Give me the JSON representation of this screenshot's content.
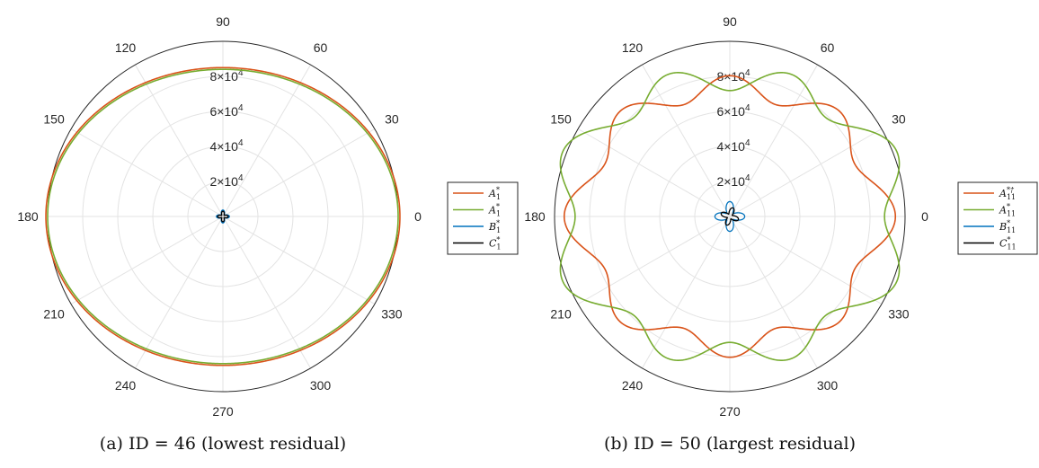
{
  "chart_data": [
    {
      "type": "polar",
      "caption": "(a) ID = 46 (lowest residual)",
      "angle_ticks": [
        "0",
        "30",
        "60",
        "90",
        "120",
        "150",
        "180",
        "210",
        "240",
        "270",
        "300",
        "330"
      ],
      "radial_ticks": [
        {
          "base": "2",
          "exp": "4",
          "value": 20000
        },
        {
          "base": "4",
          "exp": "4",
          "value": 40000
        },
        {
          "base": "6",
          "exp": "4",
          "value": 60000
        },
        {
          "base": "8",
          "exp": "4",
          "value": 80000
        }
      ],
      "rlim": [
        0,
        100000
      ],
      "grid": true,
      "legend_position": "right, clipped",
      "series": [
        {
          "name": "A_{11}^{*†}",
          "label_main": "A",
          "label_sub": "1",
          "label_sup": "*",
          "color": "#d95319",
          "form": "quartic",
          "a": 101000,
          "b": 85000,
          "k": 0,
          "m": 0,
          "phase": 0
        },
        {
          "name": "A_{11}^{*}",
          "label_main": "A",
          "label_sub": "1",
          "label_sup": "*",
          "color": "#77ac30",
          "form": "quartic",
          "a": 100000,
          "b": 84000,
          "k": 0,
          "m": 0,
          "phase": 0
        },
        {
          "name": "B_{11}^{*}",
          "label_main": "B",
          "label_sub": "1",
          "label_sup": "*",
          "color": "#0072bd",
          "form": "rose",
          "a": 1100,
          "b": 2600,
          "k": 0,
          "m": 2,
          "phase": 0
        },
        {
          "name": "C_{11}^{*}",
          "label_main": "C",
          "label_sub": "1",
          "label_sup": "*",
          "color": "#000000",
          "form": "rose",
          "a": 900,
          "b": 2100,
          "k": 0,
          "m": 2,
          "phase": 0
        }
      ]
    },
    {
      "type": "polar",
      "caption": "(b) ID = 50 (largest residual)",
      "angle_ticks": [
        "0",
        "30",
        "60",
        "90",
        "120",
        "150",
        "180",
        "210",
        "240",
        "270",
        "300",
        "330"
      ],
      "radial_ticks": [
        {
          "base": "2",
          "exp": "4",
          "value": 20000
        },
        {
          "base": "4",
          "exp": "4",
          "value": 40000
        },
        {
          "base": "6",
          "exp": "4",
          "value": 60000
        },
        {
          "base": "8",
          "exp": "4",
          "value": 80000
        }
      ],
      "rlim": [
        0,
        100000
      ],
      "grid": true,
      "legend_position": "right",
      "series": [
        {
          "name": "A_{11}^{*†}",
          "label_main": "A",
          "label_sub": "11",
          "label_sup": "*†",
          "color": "#d95319",
          "form": "lobed",
          "a": 0,
          "b": 0,
          "k": -0.086,
          "m": 4,
          "phase": 0,
          "r0": 87000,
          "r90": 74000
        },
        {
          "name": "A_{11}^{*}",
          "label_main": "A",
          "label_sub": "11",
          "label_sup": "*",
          "color": "#77ac30",
          "form": "lobed",
          "a": 0,
          "b": 0,
          "k": 0.09,
          "m": 4,
          "phase": 0,
          "r0": 97000,
          "r90": 79000
        },
        {
          "name": "B_{11}^{*}",
          "label_main": "B",
          "label_sub": "11",
          "label_sup": "*",
          "color": "#0072bd",
          "form": "rose",
          "a": 2500,
          "b": 6000,
          "k": 0,
          "m": 2,
          "phase": 0
        },
        {
          "name": "C_{11}^{*}",
          "label_main": "C",
          "label_sub": "11",
          "label_sup": "*",
          "color": "#000000",
          "form": "rose",
          "a": 1500,
          "b": 3700,
          "k": 0,
          "m": 2,
          "phase": 0.35
        }
      ]
    }
  ]
}
